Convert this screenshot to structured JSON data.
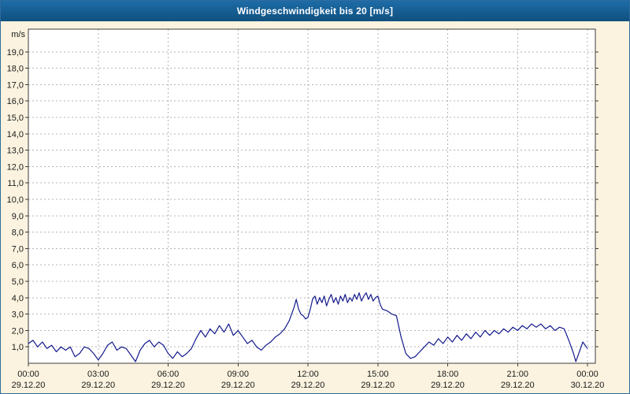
{
  "header": {
    "title": "Windgeschwindigkeit bis 20 [m/s]"
  },
  "chart_data": {
    "type": "line",
    "title": "Windgeschwindigkeit bis 20 [m/s]",
    "xlabel": "",
    "ylabel": "m/s",
    "unit_label": "m/s",
    "ylim": [
      0,
      20
    ],
    "grid": true,
    "legend": "none",
    "line_color": "#141a8c",
    "y_tick_labels": [
      "1,0",
      "2,0",
      "3,0",
      "4,0",
      "5,0",
      "6,0",
      "7,0",
      "8,0",
      "9,0",
      "10,0",
      "11,0",
      "12,0",
      "13,0",
      "14,0",
      "15,0",
      "16,0",
      "17,0",
      "18,0",
      "19,0"
    ],
    "x_ticks": [
      {
        "time": "00:00",
        "date": "29.12.20"
      },
      {
        "time": "03:00",
        "date": "29.12.20"
      },
      {
        "time": "06:00",
        "date": "29.12.20"
      },
      {
        "time": "09:00",
        "date": "29.12.20"
      },
      {
        "time": "12:00",
        "date": "29.12.20"
      },
      {
        "time": "15:00",
        "date": "29.12.20"
      },
      {
        "time": "18:00",
        "date": "29.12.20"
      },
      {
        "time": "21:00",
        "date": "29.12.20"
      },
      {
        "time": "00:00",
        "date": "30.12.20"
      }
    ],
    "points": [
      [
        0.0,
        1.2
      ],
      [
        0.2,
        1.4
      ],
      [
        0.4,
        1.0
      ],
      [
        0.6,
        1.3
      ],
      [
        0.8,
        0.9
      ],
      [
        1.0,
        1.1
      ],
      [
        1.2,
        0.7
      ],
      [
        1.4,
        1.0
      ],
      [
        1.6,
        0.8
      ],
      [
        1.8,
        1.0
      ],
      [
        2.0,
        0.4
      ],
      [
        2.2,
        0.6
      ],
      [
        2.4,
        1.0
      ],
      [
        2.6,
        0.9
      ],
      [
        2.8,
        0.6
      ],
      [
        3.0,
        0.2
      ],
      [
        3.2,
        0.6
      ],
      [
        3.4,
        1.1
      ],
      [
        3.6,
        1.3
      ],
      [
        3.8,
        0.8
      ],
      [
        4.0,
        1.0
      ],
      [
        4.2,
        0.9
      ],
      [
        4.4,
        0.5
      ],
      [
        4.6,
        0.1
      ],
      [
        4.8,
        0.8
      ],
      [
        5.0,
        1.2
      ],
      [
        5.2,
        1.4
      ],
      [
        5.4,
        1.0
      ],
      [
        5.6,
        1.3
      ],
      [
        5.8,
        1.1
      ],
      [
        6.0,
        0.6
      ],
      [
        6.2,
        0.3
      ],
      [
        6.4,
        0.7
      ],
      [
        6.6,
        0.4
      ],
      [
        6.8,
        0.6
      ],
      [
        7.0,
        0.9
      ],
      [
        7.2,
        1.5
      ],
      [
        7.4,
        2.0
      ],
      [
        7.6,
        1.6
      ],
      [
        7.8,
        2.1
      ],
      [
        8.0,
        1.8
      ],
      [
        8.2,
        2.3
      ],
      [
        8.4,
        1.9
      ],
      [
        8.6,
        2.4
      ],
      [
        8.8,
        1.7
      ],
      [
        9.0,
        2.0
      ],
      [
        9.2,
        1.6
      ],
      [
        9.4,
        1.2
      ],
      [
        9.6,
        1.4
      ],
      [
        9.8,
        1.0
      ],
      [
        10.0,
        0.8
      ],
      [
        10.2,
        1.1
      ],
      [
        10.4,
        1.3
      ],
      [
        10.6,
        1.6
      ],
      [
        10.8,
        1.8
      ],
      [
        11.0,
        2.1
      ],
      [
        11.2,
        2.6
      ],
      [
        11.4,
        3.4
      ],
      [
        11.5,
        3.9
      ],
      [
        11.6,
        3.3
      ],
      [
        11.7,
        3.0
      ],
      [
        11.8,
        2.9
      ],
      [
        11.9,
        2.7
      ],
      [
        12.0,
        2.8
      ],
      [
        12.1,
        3.3
      ],
      [
        12.2,
        3.9
      ],
      [
        12.3,
        4.1
      ],
      [
        12.4,
        3.6
      ],
      [
        12.5,
        4.0
      ],
      [
        12.6,
        3.7
      ],
      [
        12.7,
        4.1
      ],
      [
        12.8,
        3.5
      ],
      [
        12.9,
        3.9
      ],
      [
        13.0,
        4.2
      ],
      [
        13.1,
        3.7
      ],
      [
        13.2,
        4.0
      ],
      [
        13.3,
        3.6
      ],
      [
        13.4,
        4.1
      ],
      [
        13.5,
        3.8
      ],
      [
        13.6,
        4.2
      ],
      [
        13.7,
        3.7
      ],
      [
        13.8,
        4.0
      ],
      [
        13.9,
        3.8
      ],
      [
        14.0,
        4.2
      ],
      [
        14.1,
        3.9
      ],
      [
        14.2,
        4.3
      ],
      [
        14.3,
        3.8
      ],
      [
        14.4,
        4.1
      ],
      [
        14.5,
        4.3
      ],
      [
        14.6,
        3.9
      ],
      [
        14.7,
        4.2
      ],
      [
        14.8,
        3.8
      ],
      [
        14.9,
        4.0
      ],
      [
        15.0,
        4.1
      ],
      [
        15.1,
        3.6
      ],
      [
        15.2,
        3.3
      ],
      [
        15.4,
        3.2
      ],
      [
        15.6,
        3.0
      ],
      [
        15.8,
        2.9
      ],
      [
        16.0,
        1.6
      ],
      [
        16.2,
        0.6
      ],
      [
        16.4,
        0.3
      ],
      [
        16.6,
        0.4
      ],
      [
        16.8,
        0.7
      ],
      [
        17.0,
        1.0
      ],
      [
        17.2,
        1.3
      ],
      [
        17.4,
        1.1
      ],
      [
        17.6,
        1.5
      ],
      [
        17.8,
        1.2
      ],
      [
        18.0,
        1.6
      ],
      [
        18.2,
        1.3
      ],
      [
        18.4,
        1.7
      ],
      [
        18.6,
        1.4
      ],
      [
        18.8,
        1.8
      ],
      [
        19.0,
        1.5
      ],
      [
        19.2,
        1.9
      ],
      [
        19.4,
        1.6
      ],
      [
        19.6,
        2.0
      ],
      [
        19.8,
        1.7
      ],
      [
        20.0,
        2.0
      ],
      [
        20.2,
        1.8
      ],
      [
        20.4,
        2.1
      ],
      [
        20.6,
        1.9
      ],
      [
        20.8,
        2.2
      ],
      [
        21.0,
        2.0
      ],
      [
        21.2,
        2.3
      ],
      [
        21.4,
        2.1
      ],
      [
        21.6,
        2.4
      ],
      [
        21.8,
        2.2
      ],
      [
        22.0,
        2.4
      ],
      [
        22.2,
        2.1
      ],
      [
        22.4,
        2.3
      ],
      [
        22.6,
        2.0
      ],
      [
        22.8,
        2.2
      ],
      [
        23.0,
        2.1
      ],
      [
        23.2,
        1.4
      ],
      [
        23.4,
        0.6
      ],
      [
        23.5,
        0.1
      ],
      [
        23.6,
        0.5
      ],
      [
        23.8,
        1.3
      ],
      [
        24.0,
        0.9
      ]
    ]
  }
}
